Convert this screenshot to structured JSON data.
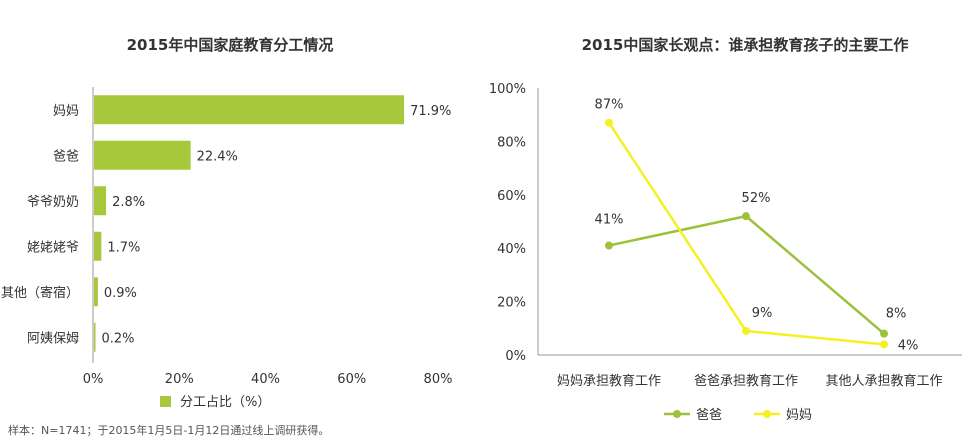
{
  "chart_data": [
    {
      "type": "bar",
      "orientation": "horizontal",
      "title": "2015年中国家庭教育分工情况",
      "categories": [
        "妈妈",
        "爸爸",
        "爷爷奶奶",
        "姥姥姥爷",
        "其他（寄宿）",
        "阿姨保姆"
      ],
      "series": [
        {
          "name": "分工占比（%）",
          "values": [
            71.9,
            22.4,
            2.8,
            1.7,
            0.9,
            0.2
          ]
        }
      ],
      "value_labels": [
        "71.9%",
        "22.4%",
        "2.8%",
        "1.7%",
        "0.9%",
        "0.2%"
      ],
      "xlim": [
        0,
        80
      ],
      "xticks": [
        0,
        20,
        40,
        60,
        80
      ],
      "xtick_labels": [
        "0%",
        "20%",
        "40%",
        "60%",
        "80%"
      ],
      "grid": false,
      "legend_position": "bottom",
      "colors": {
        "bar": "#a7c83a"
      }
    },
    {
      "type": "line",
      "title": "2015中国家长观点：谁承担教育孩子的主要工作",
      "categories": [
        "妈妈承担教育工作",
        "爸爸承担教育工作",
        "其他人承担教育工作"
      ],
      "series": [
        {
          "name": "爸爸",
          "values": [
            41,
            52,
            8
          ],
          "labels": [
            "41%",
            "52%",
            "8%"
          ],
          "color": "#9bc23a"
        },
        {
          "name": "妈妈",
          "values": [
            87,
            9,
            4
          ],
          "labels": [
            "87%",
            "9%",
            "4%"
          ],
          "color": "#f5f020"
        }
      ],
      "ylim": [
        0,
        100
      ],
      "yticks": [
        0,
        20,
        40,
        60,
        80,
        100
      ],
      "ytick_labels": [
        "0%",
        "20%",
        "40%",
        "60%",
        "80%",
        "100%"
      ],
      "grid": false,
      "legend_position": "bottom"
    }
  ],
  "footnote": "样本：N=1741；于2015年1月5日-1月12日通过线上调研获得。"
}
